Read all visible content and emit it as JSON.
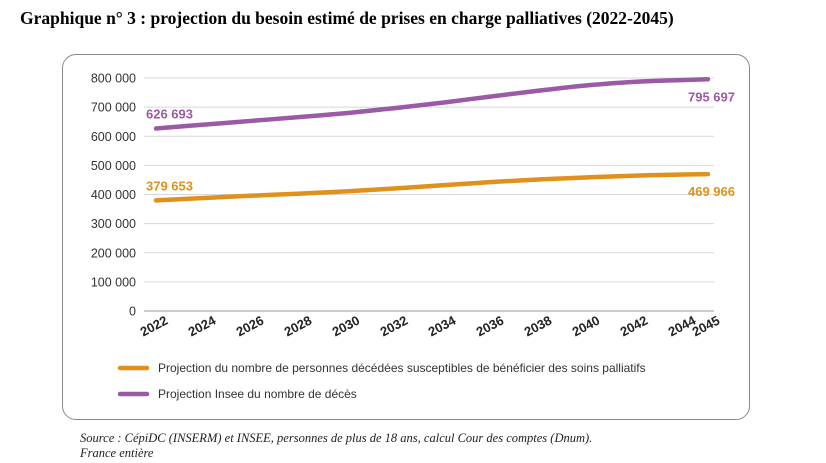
{
  "page": {
    "title": "Graphique n° 3 : projection du besoin estimé de prises en charge palliatives (2022-2045)",
    "source_line1": "Source : CépiDC (INSERM) et INSEE, personnes de plus de 18 ans, calcul Cour des comptes (Dnum).",
    "source_line2": "France entière"
  },
  "chart_data": {
    "type": "line",
    "title": "Graphique n° 3 : projection du besoin estimé de prises en charge palliatives (2022-2045)",
    "xlabel": "",
    "ylabel": "",
    "ylim": [
      0,
      800000
    ],
    "grid": true,
    "yticks": [
      0,
      100000,
      200000,
      300000,
      400000,
      500000,
      600000,
      700000,
      800000
    ],
    "ytick_labels": [
      "0",
      "100 000",
      "200 000",
      "300 000",
      "400 000",
      "500 000",
      "600 000",
      "700 000",
      "800 000"
    ],
    "xticks": [
      "2022",
      "2024",
      "2026",
      "2028",
      "2030",
      "2032",
      "2034",
      "2036",
      "2038",
      "2040",
      "2042",
      "2044",
      "2045"
    ],
    "legend_position": "bottom",
    "series": [
      {
        "name": "Projection du nombre de personnes décédées susceptibles de bénéficier des soins palliatifs",
        "color": "#e0911b",
        "x": [
          2022,
          2024,
          2026,
          2028,
          2030,
          2032,
          2034,
          2036,
          2038,
          2040,
          2042,
          2044,
          2045
        ],
        "values": [
          379653,
          388000,
          396000,
          403000,
          411000,
          421000,
          432000,
          443000,
          452000,
          459000,
          465000,
          468500,
          469966
        ],
        "start_label": "379 653",
        "end_label": "469 966"
      },
      {
        "name": "Projection Insee du nombre de décès",
        "color": "#9b5aa5",
        "x": [
          2022,
          2024,
          2026,
          2028,
          2030,
          2032,
          2034,
          2036,
          2038,
          2040,
          2042,
          2044,
          2045
        ],
        "values": [
          626693,
          640000,
          653000,
          666000,
          680000,
          697000,
          716000,
          737000,
          757000,
          775000,
          787000,
          793000,
          795697
        ],
        "start_label": "626 693",
        "end_label": "795 697"
      }
    ]
  }
}
